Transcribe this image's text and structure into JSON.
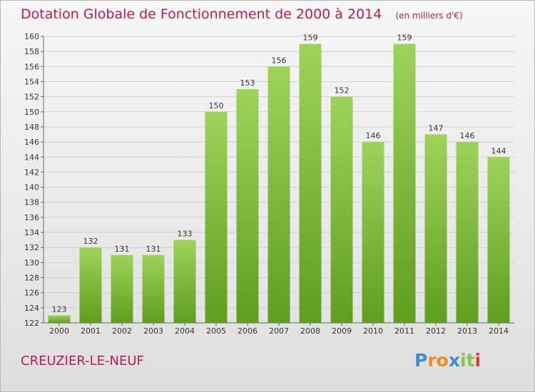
{
  "header": {
    "title": "Dotation Globale de Fonctionnement de 2000 à 2014",
    "unit_note": "(en milliers d'€)"
  },
  "footer": {
    "commune": "CREUZIER-LE-NEUF",
    "logo_text": "Proxiti"
  },
  "colors": {
    "title": "#c2185b",
    "bar_light": "#9ed35a",
    "bar_dark": "#5f9e1e",
    "grid": "#d0d0d0"
  },
  "chart_data": {
    "type": "bar",
    "title": "Dotation Globale de Fonctionnement de 2000 à 2014",
    "subtitle": "(en milliers d'€)",
    "xlabel": "",
    "ylabel": "",
    "categories": [
      "2000",
      "2001",
      "2002",
      "2003",
      "2004",
      "2005",
      "2006",
      "2007",
      "2008",
      "2009",
      "2010",
      "2011",
      "2012",
      "2013",
      "2014"
    ],
    "values": [
      123,
      132,
      131,
      131,
      133,
      150,
      153,
      156,
      159,
      152,
      146,
      159,
      147,
      146,
      144
    ],
    "ylim": [
      122,
      160
    ],
    "yticks": [
      122,
      124,
      126,
      128,
      130,
      132,
      134,
      136,
      138,
      140,
      142,
      144,
      146,
      148,
      150,
      152,
      154,
      156,
      158,
      160
    ],
    "grid": true,
    "data_labels": true
  }
}
